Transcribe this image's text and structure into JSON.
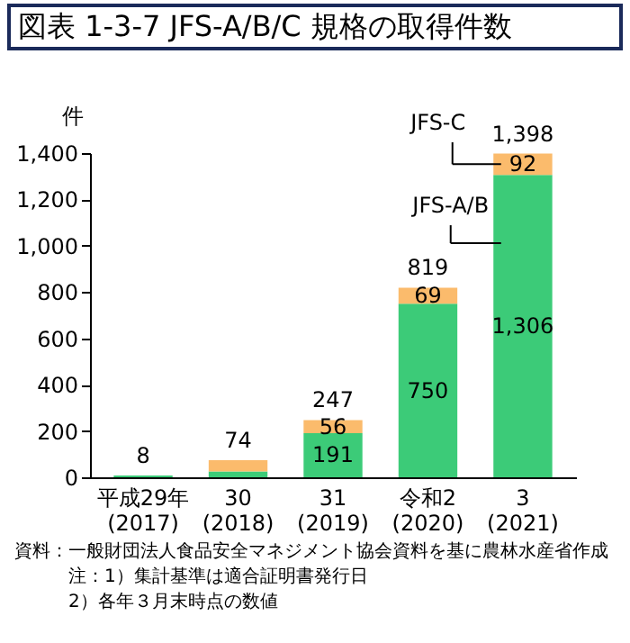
{
  "chart_data": {
    "type": "bar",
    "stacked": true,
    "title": "図表 1-3-7 JFS-A/B/C 規格の取得件数",
    "ylabel": "件",
    "categories": [
      "平成29年\n(2017)",
      "30\n(2018)",
      "31\n(2019)",
      "令和2\n(2020)",
      "3\n(2021)"
    ],
    "series": [
      {
        "name": "JFS-A/B",
        "color": "#3ccb78",
        "values": [
          8,
          25,
          191,
          750,
          1306
        ],
        "value_labels": [
          null,
          null,
          "191",
          "750",
          "1,306"
        ]
      },
      {
        "name": "JFS-C",
        "color": "#fbbb6c",
        "values": [
          null,
          49,
          56,
          69,
          92
        ],
        "value_labels": [
          null,
          null,
          "56",
          "69",
          "92"
        ]
      }
    ],
    "totals": [
      "8",
      "74",
      "247",
      "819",
      "1,398"
    ],
    "ylim": [
      0,
      1400
    ],
    "yticks": [
      0,
      {
        "value": 200,
        "label": "200"
      },
      {
        "value": 400,
        "label": "400"
      },
      {
        "value": 600,
        "label": "600"
      },
      {
        "value": 800,
        "label": "800"
      },
      {
        "value": 1000,
        "label": "1,000"
      },
      {
        "value": 1200,
        "label": "1,200"
      },
      {
        "value": 1400,
        "label": "1,400"
      }
    ],
    "grid": false,
    "legend": false,
    "annotations": [
      "資料：一般財団法人食品安全マネジメント協会資料を基に農林水産省作成",
      "注：1）集計基準は適合証明書発行日",
      "2）各年３月末時点の数値"
    ]
  }
}
